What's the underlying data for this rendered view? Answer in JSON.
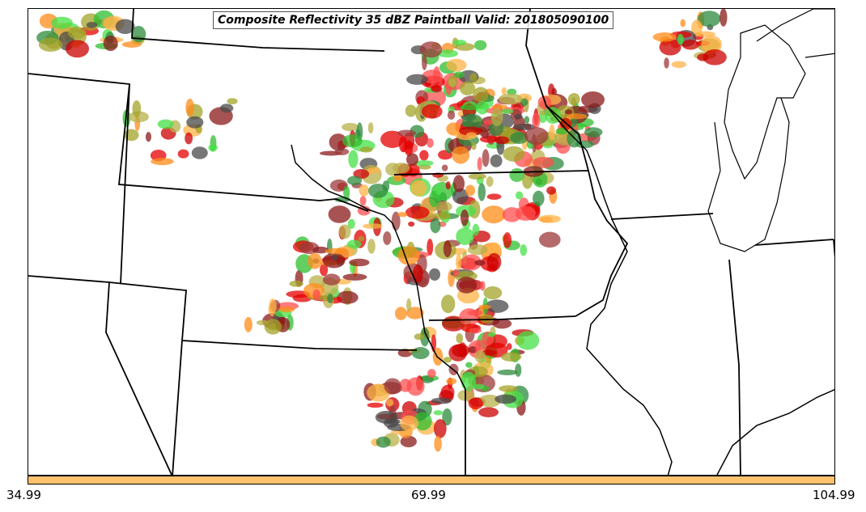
{
  "title": "Composite Reflectivity 35 dBZ Paintball Valid: 201805090100",
  "colorbar": {
    "color": "#fdc26b",
    "tick_labels": [
      "34.99",
      "69.99",
      "104.99"
    ]
  },
  "member_colors": [
    "#e60000",
    "#ff4d4d",
    "#ff8c1a",
    "#ffb347",
    "#2fbf2f",
    "#46e046",
    "#2e8b3d",
    "#8b1a1a",
    "#9c3a3a",
    "#a3a32a",
    "#b8b04a",
    "#4a4a4a",
    "#cc0000"
  ]
}
